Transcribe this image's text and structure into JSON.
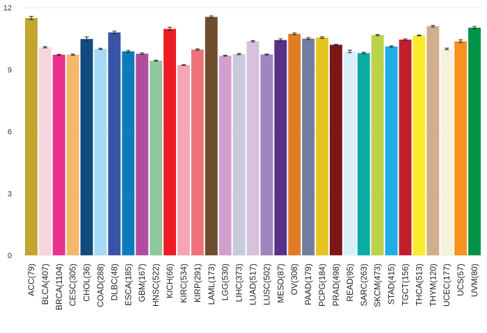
{
  "chart_data": {
    "type": "bar",
    "title": "",
    "xlabel": "",
    "ylabel": "",
    "ylim": [
      0,
      12
    ],
    "yticks": [
      0,
      3,
      6,
      9,
      12
    ],
    "grid": "horizontal",
    "error_bars": true,
    "categories": [
      "ACC(79)",
      "BLCA(407)",
      "BRCA(1104)",
      "CESC(305)",
      "CHOL(36)",
      "COAD(288)",
      "DLBC(48)",
      "ESCA(185)",
      "GBM(167)",
      "HNSC(522)",
      "KICH(66)",
      "KIRC(534)",
      "KIRP(291)",
      "LAML(173)",
      "LGG(530)",
      "LIHC(373)",
      "LUAD(517)",
      "LUSC(502)",
      "MESO(87)",
      "OV(308)",
      "PAAD(179)",
      "PCPG(184)",
      "PRAD(498)",
      "READ(95)",
      "SARC(263)",
      "SKCM(473)",
      "STAD(415)",
      "TGCT(156)",
      "THCA(513)",
      "THYM(120)",
      "UCEC(177)",
      "UCS(57)",
      "UVM(80)"
    ],
    "values": [
      11.5,
      10.08,
      9.72,
      9.72,
      10.48,
      10.0,
      10.8,
      9.88,
      9.77,
      9.43,
      10.97,
      9.22,
      9.97,
      11.55,
      9.67,
      9.75,
      10.37,
      9.73,
      10.43,
      10.73,
      10.5,
      10.55,
      10.2,
      9.88,
      9.8,
      10.67,
      10.12,
      10.45,
      10.65,
      11.1,
      10.0,
      10.37,
      11.03
    ],
    "errors": [
      0.08,
      0.03,
      0.02,
      0.03,
      0.1,
      0.03,
      0.06,
      0.05,
      0.04,
      0.02,
      0.08,
      0.02,
      0.03,
      0.05,
      0.02,
      0.03,
      0.03,
      0.02,
      0.06,
      0.04,
      0.05,
      0.04,
      0.02,
      0.06,
      0.04,
      0.03,
      0.03,
      0.04,
      0.02,
      0.04,
      0.04,
      0.07,
      0.06
    ],
    "colors": [
      "#C1A52E",
      "#F9D3DD",
      "#E8318D",
      "#F4B76C",
      "#114C7C",
      "#A6DBF6",
      "#3854A4",
      "#0C7CBC",
      "#B14D9F",
      "#8FC79E",
      "#ED1C24",
      "#F5A5B3",
      "#EE7379",
      "#6E4C2C",
      "#D29FCD",
      "#C9CBDC",
      "#D7C2DD",
      "#9E86BF",
      "#573187",
      "#E07D24",
      "#717D9F",
      "#E4C41F",
      "#7D1619",
      "#D9EEF9",
      "#0AADA3",
      "#BBD249",
      "#1FADE6",
      "#BF1E2D",
      "#F9EC2B",
      "#D1AE8C",
      "#F6F1D9",
      "#F6921E",
      "#009346"
    ]
  }
}
